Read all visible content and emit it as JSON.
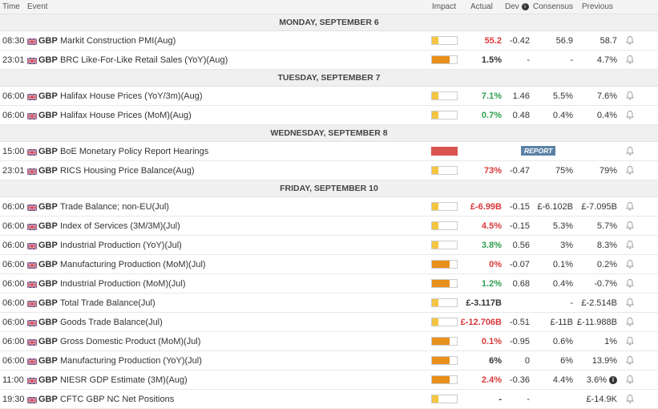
{
  "columns": {
    "time": "Time",
    "event": "Event",
    "impact": "Impact",
    "actual": "Actual",
    "dev": "Dev",
    "consensus": "Consensus",
    "previous": "Previous"
  },
  "colors": {
    "low": "#f4c542",
    "medium": "#e8901c",
    "high": "#d9534f",
    "red_value": "#d9383a",
    "green_value": "#2e9d4f"
  },
  "days": [
    {
      "label": "MONDAY, SEPTEMBER 6",
      "events": [
        {
          "time": "08:30",
          "currency": "GBP",
          "event": "Markit Construction PMI(Aug)",
          "impact": "low",
          "actual": "55.2",
          "actual_color": "red",
          "dev": "-0.42",
          "consensus": "56.9",
          "previous": "58.7"
        },
        {
          "time": "23:01",
          "currency": "GBP",
          "event": "BRC Like-For-Like Retail Sales (YoY)(Aug)",
          "impact": "medium",
          "actual": "1.5%",
          "actual_color": "none",
          "dev": "-",
          "consensus": "-",
          "previous": "4.7%"
        }
      ]
    },
    {
      "label": "TUESDAY, SEPTEMBER 7",
      "events": [
        {
          "time": "06:00",
          "currency": "GBP",
          "event": "Halifax House Prices (YoY/3m)(Aug)",
          "impact": "low",
          "actual": "7.1%",
          "actual_color": "green",
          "dev": "1.46",
          "consensus": "5.5%",
          "previous": "7.6%"
        },
        {
          "time": "06:00",
          "currency": "GBP",
          "event": "Halifax House Prices (MoM)(Aug)",
          "impact": "low",
          "actual": "0.7%",
          "actual_color": "green",
          "dev": "0.48",
          "consensus": "0.4%",
          "previous": "0.4%"
        }
      ]
    },
    {
      "label": "WEDNESDAY, SEPTEMBER 8",
      "events": [
        {
          "time": "15:00",
          "currency": "GBP",
          "event": "BoE Monetary Policy Report Hearings",
          "impact": "high",
          "report": "REPORT",
          "actual": "",
          "actual_color": "none",
          "dev": "",
          "consensus": "",
          "previous": ""
        },
        {
          "time": "23:01",
          "currency": "GBP",
          "event": "RICS Housing Price Balance(Aug)",
          "impact": "low",
          "actual": "73%",
          "actual_color": "red",
          "dev": "-0.47",
          "consensus": "75%",
          "previous": "79%"
        }
      ]
    },
    {
      "label": "FRIDAY, SEPTEMBER 10",
      "events": [
        {
          "time": "06:00",
          "currency": "GBP",
          "event": "Trade Balance; non-EU(Jul)",
          "impact": "low",
          "actual": "£-6.99B",
          "actual_color": "red",
          "dev": "-0.15",
          "consensus": "£-6.102B",
          "previous": "£-7.095B"
        },
        {
          "time": "06:00",
          "currency": "GBP",
          "event": "Index of Services (3M/3M)(Jul)",
          "impact": "low",
          "actual": "4.5%",
          "actual_color": "red",
          "dev": "-0.15",
          "consensus": "5.3%",
          "previous": "5.7%"
        },
        {
          "time": "06:00",
          "currency": "GBP",
          "event": "Industrial Production (YoY)(Jul)",
          "impact": "low",
          "actual": "3.8%",
          "actual_color": "green",
          "dev": "0.56",
          "consensus": "3%",
          "previous": "8.3%"
        },
        {
          "time": "06:00",
          "currency": "GBP",
          "event": "Manufacturing Production (MoM)(Jul)",
          "impact": "medium",
          "actual": "0%",
          "actual_color": "red",
          "dev": "-0.07",
          "consensus": "0.1%",
          "previous": "0.2%"
        },
        {
          "time": "06:00",
          "currency": "GBP",
          "event": "Industrial Production (MoM)(Jul)",
          "impact": "medium",
          "actual": "1.2%",
          "actual_color": "green",
          "dev": "0.68",
          "consensus": "0.4%",
          "previous": "-0.7%"
        },
        {
          "time": "06:00",
          "currency": "GBP",
          "event": "Total Trade Balance(Jul)",
          "impact": "low",
          "actual": "£-3.117B",
          "actual_color": "none",
          "dev": "",
          "consensus": "-",
          "previous": "£-2.514B"
        },
        {
          "time": "06:00",
          "currency": "GBP",
          "event": "Goods Trade Balance(Jul)",
          "impact": "low",
          "actual": "£-12.706B",
          "actual_color": "red",
          "dev": "-0.51",
          "consensus": "£-11B",
          "previous": "£-11.988B"
        },
        {
          "time": "06:00",
          "currency": "GBP",
          "event": "Gross Domestic Product (MoM)(Jul)",
          "impact": "medium",
          "actual": "0.1%",
          "actual_color": "red",
          "dev": "-0.95",
          "consensus": "0.6%",
          "previous": "1%"
        },
        {
          "time": "06:00",
          "currency": "GBP",
          "event": "Manufacturing Production (YoY)(Jul)",
          "impact": "medium",
          "actual": "6%",
          "actual_color": "none",
          "dev": "0",
          "consensus": "6%",
          "previous": "13.9%"
        },
        {
          "time": "11:00",
          "currency": "GBP",
          "event": "NIESR GDP Estimate (3M)(Aug)",
          "impact": "medium",
          "actual": "2.4%",
          "actual_color": "red",
          "dev": "-0.36",
          "consensus": "4.4%",
          "previous": "3.6%",
          "previous_info": true
        },
        {
          "time": "19:30",
          "currency": "GBP",
          "event": "CFTC GBP NC Net Positions",
          "impact": "low",
          "actual": "-",
          "actual_color": "none",
          "dev": "-",
          "consensus": "",
          "previous": "£-14.9K"
        }
      ]
    }
  ]
}
